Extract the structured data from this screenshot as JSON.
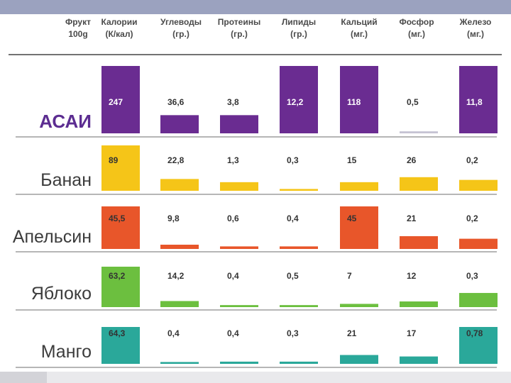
{
  "chart_data": {
    "type": "table",
    "title": "",
    "columns": [
      {
        "key": "fruit",
        "line1": "Фрукт",
        "line2": "100g"
      },
      {
        "key": "calories",
        "line1": "Калории",
        "line2": "(К/кал)"
      },
      {
        "key": "carbs",
        "line1": "Углеводы",
        "line2": "(гр.)"
      },
      {
        "key": "protein",
        "line1": "Протеины",
        "line2": "(гр.)"
      },
      {
        "key": "lipids",
        "line1": "Липиды",
        "line2": "(гр.)"
      },
      {
        "key": "calcium",
        "line1": "Кальций",
        "line2": "(мг.)"
      },
      {
        "key": "phosphorus",
        "line1": "Фосфор",
        "line2": "(мг.)"
      },
      {
        "key": "iron",
        "line1": "Железо",
        "line2": "(мг.)"
      }
    ],
    "rows": [
      {
        "fruit": "АСАИ",
        "emphasis": true,
        "color": "#6a2c91",
        "labels": [
          "247",
          "36,6",
          "3,8",
          "12,2",
          "118",
          "0,5",
          "11,8"
        ],
        "values": [
          247,
          36.6,
          3.8,
          12.2,
          118,
          0.5,
          11.8
        ]
      },
      {
        "fruit": "Банан",
        "emphasis": false,
        "color": "#f5c518",
        "labels": [
          "89",
          "22,8",
          "1,3",
          "0,3",
          "15",
          "26",
          "0,2"
        ],
        "values": [
          89,
          22.8,
          1.3,
          0.3,
          15,
          26,
          0.2
        ]
      },
      {
        "fruit": "Апельсин",
        "emphasis": false,
        "color": "#e8562a",
        "labels": [
          "45,5",
          "9,8",
          "0,6",
          "0,4",
          "45",
          "21",
          "0,2"
        ],
        "values": [
          45.5,
          9.8,
          0.6,
          0.4,
          45,
          21,
          0.2
        ]
      },
      {
        "fruit": "Яблоко",
        "emphasis": false,
        "color": "#6cbf3f",
        "labels": [
          "63,2",
          "14,2",
          "0,4",
          "0,5",
          "7",
          "12",
          "0,3"
        ],
        "values": [
          63.2,
          14.2,
          0.4,
          0.5,
          7,
          12,
          0.3
        ]
      },
      {
        "fruit": "Манго",
        "emphasis": false,
        "color": "#2aa89a",
        "labels": [
          "64,3",
          "0,4",
          "0,4",
          "0,3",
          "21",
          "17",
          "0,78"
        ],
        "values": [
          64.3,
          0.4,
          0.4,
          0.3,
          21,
          17,
          0.78
        ]
      }
    ],
    "bar_fill_fractions": [
      [
        1.0,
        0.27,
        0.27,
        1.0,
        1.0,
        0.03,
        1.0
      ],
      [
        1.0,
        0.26,
        0.19,
        0.04,
        0.19,
        0.3,
        0.24
      ],
      [
        1.0,
        0.1,
        0.06,
        0.06,
        1.0,
        0.3,
        0.24
      ],
      [
        1.0,
        0.15,
        0.05,
        0.05,
        0.08,
        0.14,
        0.35
      ],
      [
        1.0,
        0.05,
        0.06,
        0.06,
        0.24,
        0.2,
        1.0
      ]
    ]
  }
}
